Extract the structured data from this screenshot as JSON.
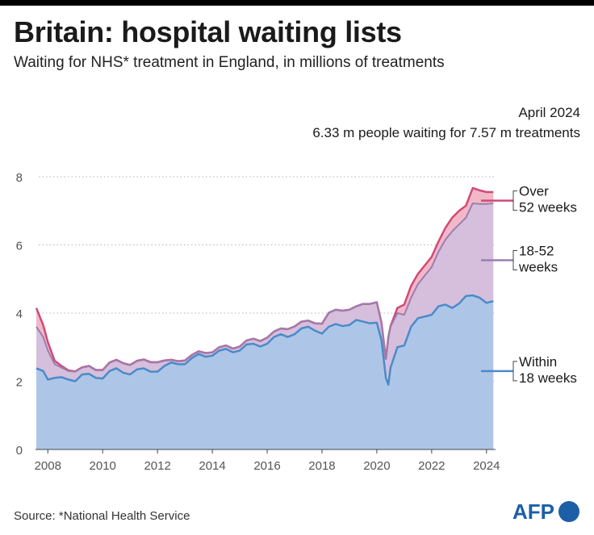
{
  "header": {
    "title": "Britain: hospital waiting lists",
    "subtitle": "Waiting for NHS* treatment in England, in millions of treatments"
  },
  "annotation": {
    "line1": "April 2024",
    "line2": "6.33 m people waiting for 7.57 m treatments"
  },
  "footer": {
    "source": "Source: *National Health Service",
    "logo": "AFP"
  },
  "colors": {
    "within_fill": "#adc6e8",
    "within_line": "#4a8bc9",
    "mid_fill": "#d5bfdc",
    "mid_line": "#9a7fb0",
    "over_fill": "#f3b8c8",
    "over_line": "#d04a77",
    "grid": "#b5b5b5",
    "axis_text": "#555555"
  },
  "chart_data": {
    "type": "area",
    "stacked": true,
    "xlim": [
      2007.55,
      2024.33
    ],
    "ylim": [
      0,
      8
    ],
    "yticks": [
      "0",
      "2",
      "4",
      "6",
      "8"
    ],
    "xticks": [
      "2008",
      "2010",
      "2012",
      "2014",
      "2016",
      "2018",
      "2020",
      "2022",
      "2024"
    ],
    "grid": true,
    "x": [
      2007.58,
      2007.83,
      2008.0,
      2008.25,
      2008.5,
      2008.75,
      2009.0,
      2009.25,
      2009.5,
      2009.75,
      2010.0,
      2010.25,
      2010.5,
      2010.75,
      2011.0,
      2011.25,
      2011.5,
      2011.75,
      2012.0,
      2012.25,
      2012.5,
      2012.75,
      2013.0,
      2013.25,
      2013.5,
      2013.75,
      2014.0,
      2014.25,
      2014.5,
      2014.75,
      2015.0,
      2015.25,
      2015.5,
      2015.75,
      2016.0,
      2016.25,
      2016.5,
      2016.75,
      2017.0,
      2017.25,
      2017.5,
      2017.75,
      2018.0,
      2018.25,
      2018.5,
      2018.75,
      2019.0,
      2019.25,
      2019.5,
      2019.75,
      2020.0,
      2020.17,
      2020.33,
      2020.42,
      2020.5,
      2020.75,
      2021.0,
      2021.25,
      2021.5,
      2021.75,
      2022.0,
      2022.25,
      2022.5,
      2022.75,
      2023.0,
      2023.25,
      2023.5,
      2023.75,
      2024.0,
      2024.25
    ],
    "series": [
      {
        "name": "Within 18 weeks",
        "values": [
          2.38,
          2.3,
          2.05,
          2.1,
          2.12,
          2.05,
          2.0,
          2.2,
          2.22,
          2.1,
          2.08,
          2.3,
          2.38,
          2.25,
          2.2,
          2.35,
          2.38,
          2.28,
          2.28,
          2.45,
          2.55,
          2.5,
          2.5,
          2.68,
          2.8,
          2.72,
          2.75,
          2.9,
          2.95,
          2.85,
          2.9,
          3.08,
          3.1,
          3.02,
          3.1,
          3.3,
          3.38,
          3.3,
          3.38,
          3.55,
          3.6,
          3.48,
          3.4,
          3.6,
          3.68,
          3.62,
          3.65,
          3.8,
          3.75,
          3.7,
          3.72,
          3.2,
          2.1,
          1.9,
          2.4,
          3.0,
          3.05,
          3.6,
          3.85,
          3.9,
          3.95,
          4.2,
          4.25,
          4.15,
          4.28,
          4.5,
          4.52,
          4.45,
          4.3,
          4.35
        ]
      },
      {
        "name": "18-52 weeks",
        "values": [
          1.22,
          1.0,
          0.85,
          0.4,
          0.28,
          0.25,
          0.28,
          0.2,
          0.22,
          0.22,
          0.24,
          0.24,
          0.24,
          0.27,
          0.27,
          0.24,
          0.25,
          0.27,
          0.27,
          0.15,
          0.07,
          0.08,
          0.1,
          0.08,
          0.07,
          0.1,
          0.1,
          0.1,
          0.1,
          0.11,
          0.12,
          0.12,
          0.15,
          0.16,
          0.18,
          0.16,
          0.17,
          0.23,
          0.23,
          0.2,
          0.18,
          0.22,
          0.29,
          0.41,
          0.42,
          0.45,
          0.45,
          0.4,
          0.52,
          0.57,
          0.6,
          0.52,
          0.55,
          1.4,
          1.2,
          1.0,
          0.9,
          0.85,
          1.0,
          1.2,
          1.4,
          1.6,
          1.9,
          2.25,
          2.32,
          2.3,
          2.7,
          2.75,
          2.9,
          2.87
        ]
      },
      {
        "name": "Over 52 weeks",
        "values": [
          0.55,
          0.35,
          0.25,
          0.1,
          0.05,
          0.02,
          0.01,
          0.01,
          0.01,
          0.01,
          0.01,
          0.01,
          0.01,
          0.01,
          0.01,
          0.01,
          0.01,
          0.01,
          0.01,
          0.01,
          0.01,
          0.01,
          0.01,
          0.01,
          0.01,
          0.01,
          0.0,
          0.0,
          0.0,
          0.0,
          0.0,
          0.0,
          0.0,
          0.0,
          0.0,
          0.0,
          0.0,
          0.0,
          0.0,
          0.0,
          0.0,
          0.0,
          0.0,
          0.0,
          0.0,
          0.0,
          0.0,
          0.0,
          0.0,
          0.0,
          0.0,
          0.0,
          0.01,
          0.0,
          0.02,
          0.15,
          0.3,
          0.35,
          0.3,
          0.3,
          0.3,
          0.3,
          0.35,
          0.4,
          0.4,
          0.35,
          0.45,
          0.4,
          0.35,
          0.33
        ]
      }
    ],
    "legend": [
      {
        "lines": [
          "Over",
          "52 weeks"
        ],
        "series": "Over 52 weeks",
        "value": 7.3
      },
      {
        "lines": [
          "18-52",
          "weeks"
        ],
        "series": "18-52 weeks",
        "value": 5.55
      },
      {
        "lines": [
          "Within",
          "18 weeks"
        ],
        "series": "Within 18 weeks",
        "value": 2.3
      }
    ]
  }
}
